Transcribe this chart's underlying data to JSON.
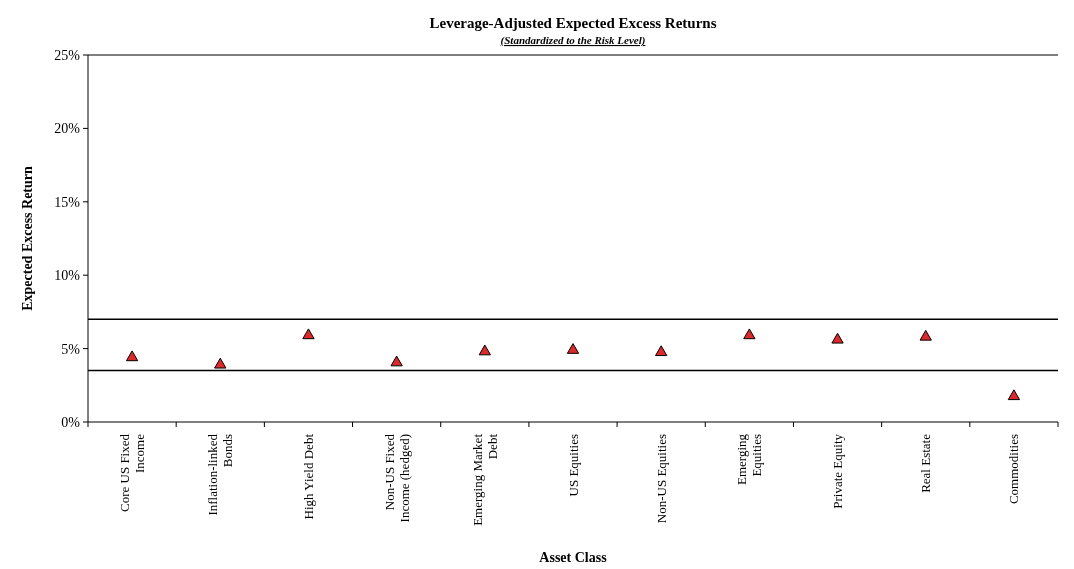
{
  "chart_data": {
    "type": "scatter",
    "title": "Leverage-Adjusted Expected Excess Returns",
    "subtitle": "(Standardized to the Risk Level)",
    "xlabel": "Asset Class",
    "ylabel": "Expected Excess Return",
    "categories": [
      "Core US Fixed Income",
      "Inflation-linked Bonds",
      "High Yield Debt",
      "Non-US Fixed Income (hedged)",
      "Emerging Market Debt",
      "US Equities",
      "Non-US Equities",
      "Emerging Equities",
      "Private Equity",
      "Real Estate",
      "Commodities"
    ],
    "series": [
      {
        "color": "#e02828",
        "values": [
          4.5,
          4.0,
          6.0,
          4.15,
          4.9,
          5.0,
          4.85,
          6.0,
          5.7,
          5.9,
          1.85
        ]
      }
    ],
    "ylim": [
      0,
      25
    ],
    "yticks": [
      {
        "value": 0,
        "label": "0%"
      },
      {
        "value": 5,
        "label": "5%"
      },
      {
        "value": 10,
        "label": "10%"
      },
      {
        "value": 15,
        "label": "15%"
      },
      {
        "value": 20,
        "label": "20%"
      },
      {
        "value": 25,
        "label": "25%"
      }
    ],
    "ref_lines": [
      {
        "axis": "y",
        "value": 7,
        "color": "#000000"
      },
      {
        "axis": "y",
        "value": 3.5,
        "color": "#000000"
      }
    ],
    "marker": "triangle"
  }
}
